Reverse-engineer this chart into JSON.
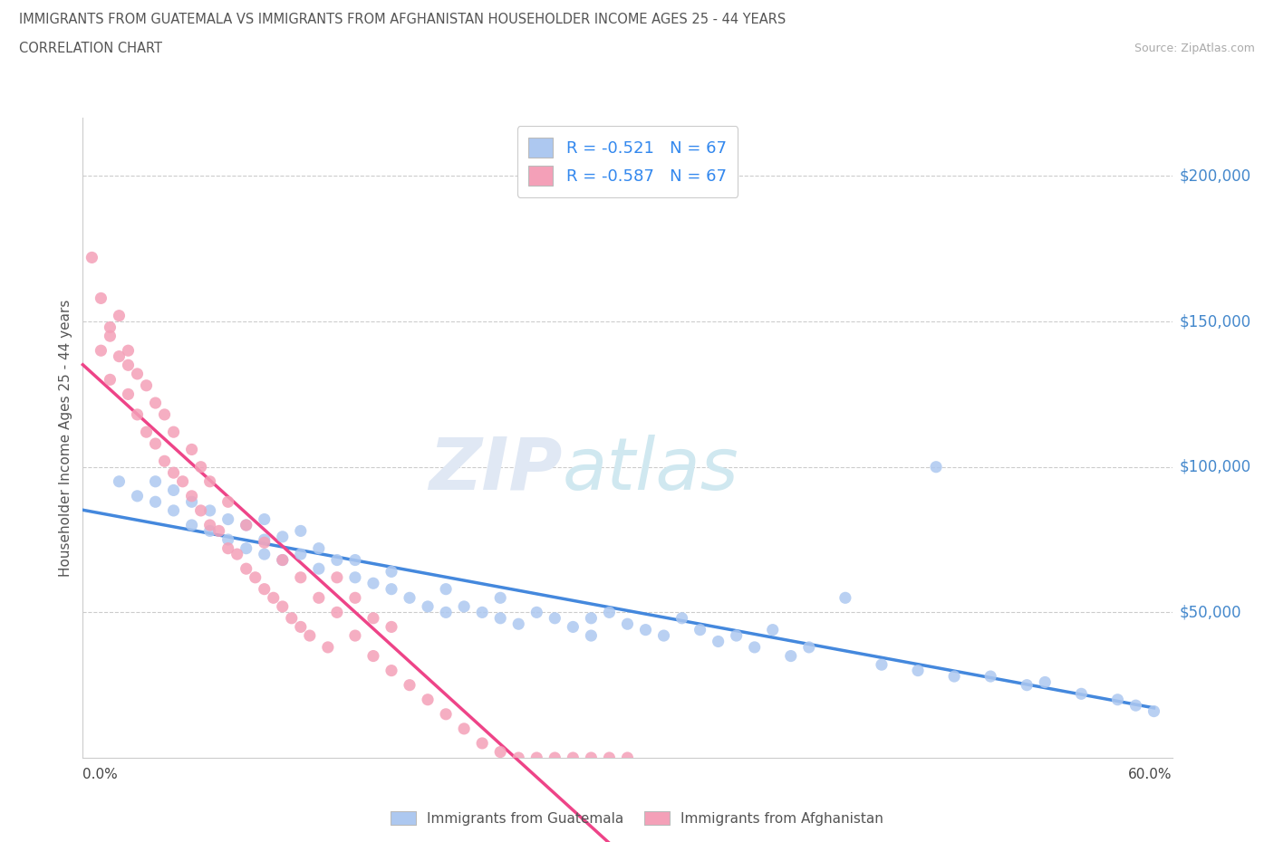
{
  "title_line1": "IMMIGRANTS FROM GUATEMALA VS IMMIGRANTS FROM AFGHANISTAN HOUSEHOLDER INCOME AGES 25 - 44 YEARS",
  "title_line2": "CORRELATION CHART",
  "source": "Source: ZipAtlas.com",
  "ylabel": "Householder Income Ages 25 - 44 years",
  "ytick_labels": [
    "$50,000",
    "$100,000",
    "$150,000",
    "$200,000"
  ],
  "ytick_values": [
    50000,
    100000,
    150000,
    200000
  ],
  "xlim": [
    0.0,
    0.6
  ],
  "ylim": [
    0,
    220000
  ],
  "legend1_label": "R = -0.521   N = 67",
  "legend2_label": "R = -0.587   N = 67",
  "color_guatemala": "#adc8f0",
  "color_afghanistan": "#f4a0b8",
  "color_line_guatemala": "#4488dd",
  "color_line_afghanistan": "#ee4488",
  "legend_bottom_label1": "Immigrants from Guatemala",
  "legend_bottom_label2": "Immigrants from Afghanistan",
  "guatemala_x": [
    0.02,
    0.03,
    0.04,
    0.04,
    0.05,
    0.05,
    0.06,
    0.06,
    0.07,
    0.07,
    0.08,
    0.08,
    0.09,
    0.09,
    0.1,
    0.1,
    0.1,
    0.11,
    0.11,
    0.12,
    0.12,
    0.13,
    0.13,
    0.14,
    0.15,
    0.15,
    0.16,
    0.17,
    0.17,
    0.18,
    0.19,
    0.2,
    0.2,
    0.21,
    0.22,
    0.23,
    0.23,
    0.24,
    0.25,
    0.26,
    0.27,
    0.28,
    0.28,
    0.29,
    0.3,
    0.31,
    0.32,
    0.33,
    0.34,
    0.35,
    0.36,
    0.37,
    0.38,
    0.39,
    0.4,
    0.42,
    0.44,
    0.46,
    0.48,
    0.5,
    0.52,
    0.55,
    0.57,
    0.58,
    0.59,
    0.47,
    0.53
  ],
  "guatemala_y": [
    95000,
    90000,
    88000,
    95000,
    85000,
    92000,
    80000,
    88000,
    78000,
    85000,
    75000,
    82000,
    72000,
    80000,
    70000,
    75000,
    82000,
    68000,
    76000,
    70000,
    78000,
    65000,
    72000,
    68000,
    62000,
    68000,
    60000,
    58000,
    64000,
    55000,
    52000,
    50000,
    58000,
    52000,
    50000,
    48000,
    55000,
    46000,
    50000,
    48000,
    45000,
    48000,
    42000,
    50000,
    46000,
    44000,
    42000,
    48000,
    44000,
    40000,
    42000,
    38000,
    44000,
    35000,
    38000,
    55000,
    32000,
    30000,
    28000,
    28000,
    25000,
    22000,
    20000,
    18000,
    16000,
    100000,
    26000
  ],
  "afghanistan_x": [
    0.005,
    0.01,
    0.01,
    0.015,
    0.015,
    0.02,
    0.02,
    0.025,
    0.025,
    0.03,
    0.03,
    0.035,
    0.035,
    0.04,
    0.04,
    0.045,
    0.045,
    0.05,
    0.05,
    0.055,
    0.06,
    0.06,
    0.065,
    0.065,
    0.07,
    0.07,
    0.075,
    0.08,
    0.08,
    0.085,
    0.09,
    0.09,
    0.095,
    0.1,
    0.1,
    0.105,
    0.11,
    0.11,
    0.115,
    0.12,
    0.12,
    0.125,
    0.13,
    0.135,
    0.14,
    0.14,
    0.15,
    0.15,
    0.16,
    0.16,
    0.17,
    0.17,
    0.18,
    0.19,
    0.2,
    0.21,
    0.22,
    0.23,
    0.24,
    0.25,
    0.26,
    0.27,
    0.28,
    0.29,
    0.3,
    0.015,
    0.025
  ],
  "afghanistan_y": [
    172000,
    158000,
    140000,
    148000,
    130000,
    138000,
    152000,
    125000,
    140000,
    118000,
    132000,
    112000,
    128000,
    108000,
    122000,
    102000,
    118000,
    98000,
    112000,
    95000,
    90000,
    106000,
    85000,
    100000,
    80000,
    95000,
    78000,
    72000,
    88000,
    70000,
    65000,
    80000,
    62000,
    58000,
    74000,
    55000,
    52000,
    68000,
    48000,
    45000,
    62000,
    42000,
    55000,
    38000,
    50000,
    62000,
    42000,
    55000,
    35000,
    48000,
    30000,
    45000,
    25000,
    20000,
    15000,
    10000,
    5000,
    2000,
    0,
    0,
    0,
    0,
    0,
    0,
    0,
    145000,
    135000
  ]
}
